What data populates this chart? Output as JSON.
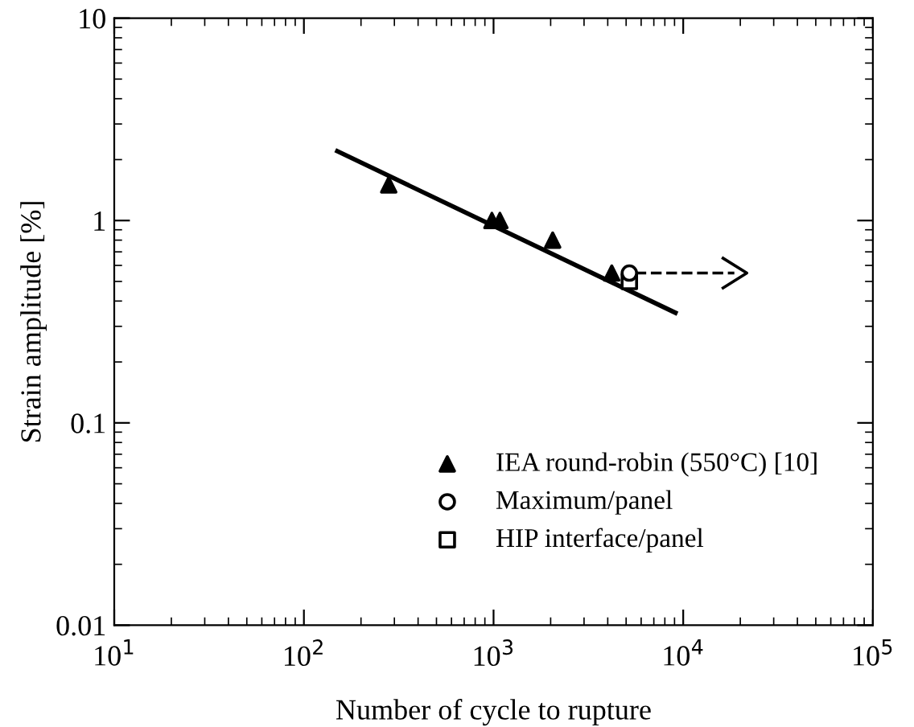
{
  "chart_data": {
    "type": "scatter",
    "xlabel": "Number of cycle to rupture",
    "ylabel": "Strain amplitude [%]",
    "log": "xy",
    "xlim": [
      10,
      100000
    ],
    "ylim": [
      0.01,
      10
    ],
    "xticks": [
      {
        "value": 10,
        "label": "10$^{1}$"
      },
      {
        "value": 100,
        "label": "10$^{2}$"
      },
      {
        "value": 1000,
        "label": "10$^{3}$"
      },
      {
        "value": 10000,
        "label": "10$^{4}$"
      },
      {
        "value": 100000,
        "label": "10$^{5}$"
      }
    ],
    "yticks": [
      0.01,
      0.1,
      1,
      10
    ],
    "grid": false,
    "legend": "bottom right",
    "series": [
      {
        "name": "IEA round-robin (550°C) [10]",
        "color": "#000000",
        "marker": "triangle",
        "x": [
          280,
          980,
          1080,
          2050,
          4200
        ],
        "values": [
          1.5,
          1.0,
          1.0,
          0.8,
          0.55
        ]
      },
      {
        "name": "Maximum/panel",
        "color": "#000000",
        "marker": "circle",
        "x": [
          5200
        ],
        "values": [
          0.55
        ]
      },
      {
        "name": "HIP interface/panel",
        "color": "#000000",
        "marker": "square",
        "x": [
          5200
        ],
        "values": [
          0.5
        ]
      },
      {
        "type": "line",
        "color": "#000000",
        "line_style": "solid",
        "x": [
          150,
          9100
        ],
        "values": [
          2.2,
          0.35
        ]
      },
      {
        "type": "line",
        "color": "#000000",
        "line_style": "dashed",
        "x": [
          5600,
          18600
        ],
        "values": [
          0.55,
          0.55
        ]
      }
    ]
  }
}
